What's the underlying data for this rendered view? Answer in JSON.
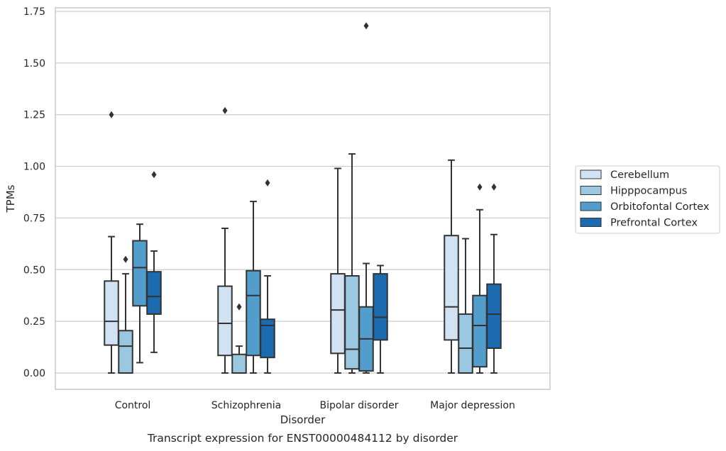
{
  "caption": "Transcript expression for ENST00000484112 by disorder",
  "chart_data": {
    "type": "box",
    "xlabel": "Disorder",
    "ylabel": "TPMs",
    "ylim": [
      -0.08,
      1.76
    ],
    "yticks": [
      "0.00",
      "0.25",
      "0.50",
      "0.75",
      "1.00",
      "1.25",
      "1.50",
      "1.75"
    ],
    "ytick_values": [
      0,
      0.25,
      0.5,
      0.75,
      1.0,
      1.25,
      1.5,
      1.75
    ],
    "grid": true,
    "legend_position": "right",
    "categories": [
      "Control",
      "Schizophrenia",
      "Bipolar disorder",
      "Major depression"
    ],
    "series": [
      {
        "name": "Cerebellum",
        "color": "#d1e2f3",
        "boxes": [
          {
            "whislo": 0.0,
            "q1": 0.135,
            "med": 0.25,
            "q3": 0.445,
            "whishi": 0.66,
            "fliers": [
              1.25
            ]
          },
          {
            "whislo": 0.0,
            "q1": 0.085,
            "med": 0.24,
            "q3": 0.42,
            "whishi": 0.7,
            "fliers": [
              1.27
            ]
          },
          {
            "whislo": 0.0,
            "q1": 0.095,
            "med": 0.305,
            "q3": 0.48,
            "whishi": 0.99,
            "fliers": []
          },
          {
            "whislo": 0.0,
            "q1": 0.16,
            "med": 0.32,
            "q3": 0.665,
            "whishi": 1.03,
            "fliers": []
          }
        ]
      },
      {
        "name": "Hipppocampus",
        "color": "#9ac8e0",
        "boxes": [
          {
            "whislo": 0.0,
            "q1": 0.0,
            "med": 0.13,
            "q3": 0.205,
            "whishi": 0.48,
            "fliers": [
              0.55
            ]
          },
          {
            "whislo": 0.0,
            "q1": 0.0,
            "med": 0.0,
            "q3": 0.09,
            "whishi": 0.13,
            "fliers": [
              0.32
            ]
          },
          {
            "whislo": 0.0,
            "q1": 0.02,
            "med": 0.115,
            "q3": 0.47,
            "whishi": 1.06,
            "fliers": []
          },
          {
            "whislo": 0.0,
            "q1": 0.0,
            "med": 0.12,
            "q3": 0.285,
            "whishi": 0.65,
            "fliers": []
          }
        ]
      },
      {
        "name": "Orbitofontal Cortex",
        "color": "#529dcc",
        "boxes": [
          {
            "whislo": 0.05,
            "q1": 0.325,
            "med": 0.51,
            "q3": 0.64,
            "whishi": 0.72,
            "fliers": []
          },
          {
            "whislo": 0.0,
            "q1": 0.085,
            "med": 0.375,
            "q3": 0.495,
            "whishi": 0.83,
            "fliers": []
          },
          {
            "whislo": 0.0,
            "q1": 0.01,
            "med": 0.165,
            "q3": 0.32,
            "whishi": 0.53,
            "fliers": [
              1.68
            ]
          },
          {
            "whislo": 0.0,
            "q1": 0.03,
            "med": 0.23,
            "q3": 0.375,
            "whishi": 0.79,
            "fliers": [
              0.9
            ]
          }
        ]
      },
      {
        "name": "Prefrontal Cortex",
        "color": "#1c6bb0",
        "boxes": [
          {
            "whislo": 0.1,
            "q1": 0.285,
            "med": 0.37,
            "q3": 0.49,
            "whishi": 0.59,
            "fliers": [
              0.96
            ]
          },
          {
            "whislo": 0.0,
            "q1": 0.075,
            "med": 0.23,
            "q3": 0.26,
            "whishi": 0.47,
            "fliers": [
              0.92
            ]
          },
          {
            "whislo": 0.0,
            "q1": 0.16,
            "med": 0.27,
            "q3": 0.48,
            "whishi": 0.52,
            "fliers": []
          },
          {
            "whislo": 0.0,
            "q1": 0.12,
            "med": 0.285,
            "q3": 0.43,
            "whishi": 0.67,
            "fliers": [
              0.9
            ]
          }
        ]
      }
    ]
  }
}
